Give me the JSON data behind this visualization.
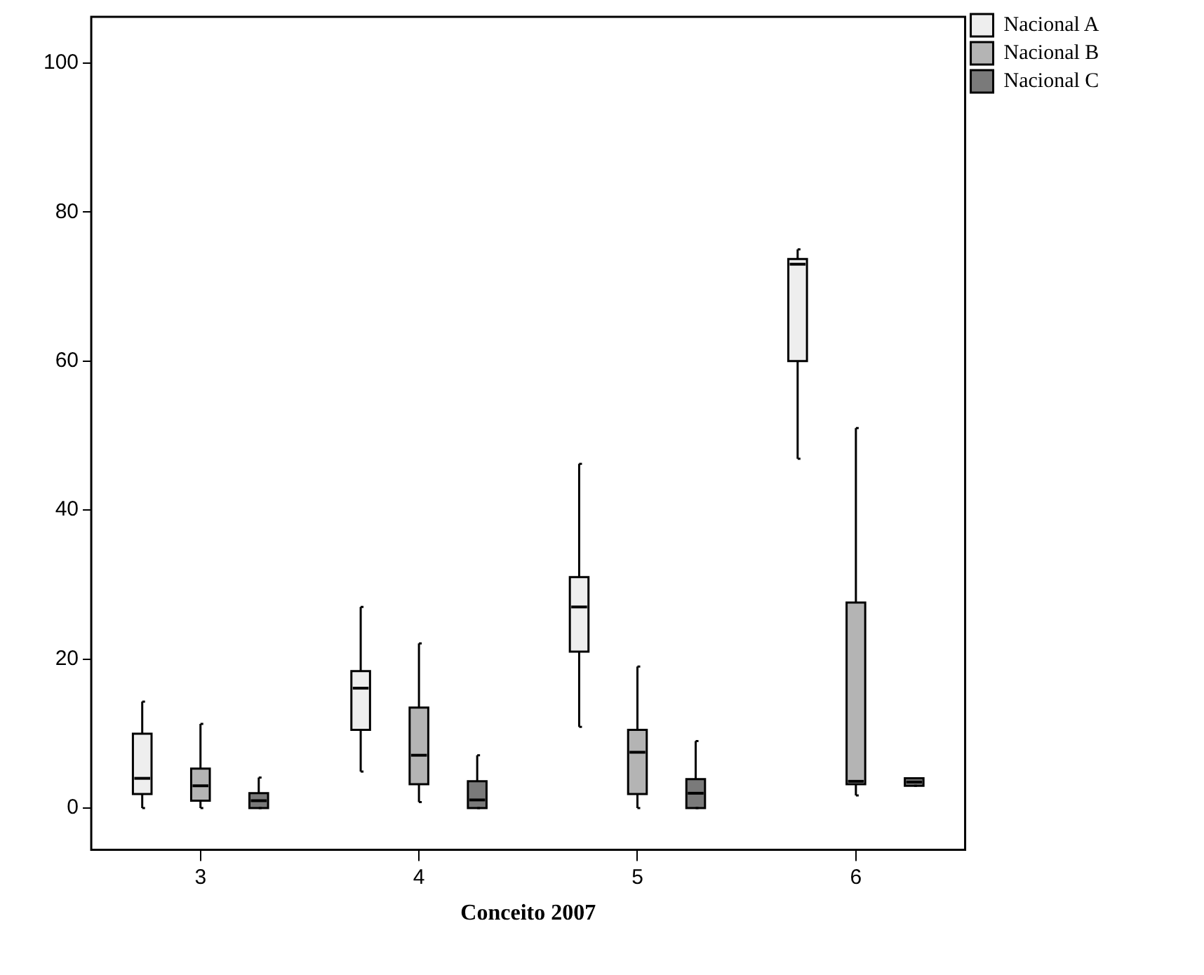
{
  "chart_data": {
    "type": "box",
    "xlabel": "Conceito 2007",
    "categories": [
      "3",
      "4",
      "5",
      "6"
    ],
    "ylim": [
      -5.6,
      106.2
    ],
    "yticks": [
      0,
      20,
      40,
      60,
      80,
      100
    ],
    "grid": false,
    "legend": "top right",
    "series": [
      {
        "name": "Nacional A",
        "color": "#eeeeee",
        "boxes": [
          {
            "low": 0,
            "q1": 1.9,
            "median": 4,
            "q3": 10,
            "high": 14.3
          },
          {
            "low": 4.9,
            "q1": 10.5,
            "median": 16.1,
            "q3": 18.4,
            "high": 27
          },
          {
            "low": 10.9,
            "q1": 21,
            "median": 27,
            "q3": 31,
            "high": 46.2
          },
          {
            "low": 46.9,
            "q1": 60,
            "median": 73,
            "q3": 73.7,
            "high": 75
          }
        ]
      },
      {
        "name": "Nacional B",
        "color": "#b4b4b4",
        "boxes": [
          {
            "low": 0,
            "q1": 1,
            "median": 3,
            "q3": 5.3,
            "high": 11.3
          },
          {
            "low": 0.8,
            "q1": 3.2,
            "median": 7.1,
            "q3": 13.5,
            "high": 22.1
          },
          {
            "low": 0,
            "q1": 1.9,
            "median": 7.5,
            "q3": 10.5,
            "high": 19
          },
          {
            "low": 1.7,
            "q1": 3.2,
            "median": 3.6,
            "q3": 27.6,
            "high": 51
          }
        ]
      },
      {
        "name": "Nacional C",
        "color": "#7a7a7a",
        "boxes": [
          {
            "low": 0,
            "q1": 0,
            "median": 1,
            "q3": 2,
            "high": 4.1
          },
          {
            "low": 0,
            "q1": 0,
            "median": 1.1,
            "q3": 3.6,
            "high": 7.1
          },
          {
            "low": 0,
            "q1": 0,
            "median": 2,
            "q3": 3.9,
            "high": 9
          },
          {
            "low": 3,
            "q1": 3,
            "median": 3.5,
            "q3": 4,
            "high": 4
          }
        ]
      }
    ]
  }
}
